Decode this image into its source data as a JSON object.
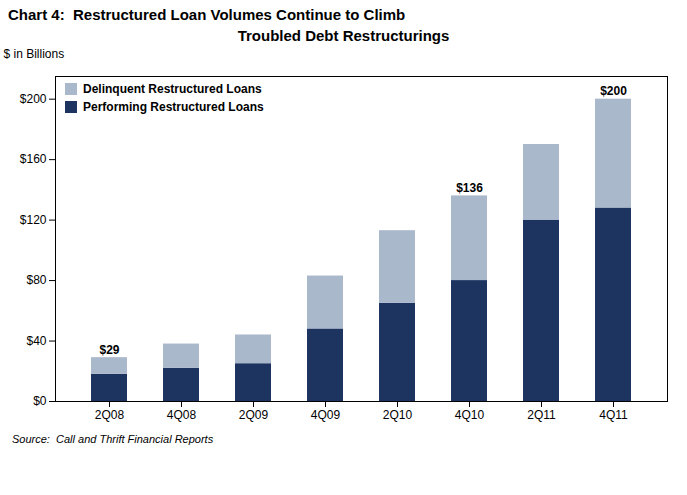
{
  "chart_data": {
    "type": "bar",
    "stacked": true,
    "title": "Chart 4:  Restructured Loan Volumes Continue to Climb",
    "subtitle": "Troubled Debt Restructurings",
    "ylabel": "$ in Billions",
    "caption": "Source:  Call and Thrift Financial Reports",
    "categories": [
      "2Q08",
      "4Q08",
      "2Q09",
      "4Q09",
      "2Q10",
      "4Q10",
      "2Q11",
      "4Q11"
    ],
    "series": [
      {
        "name": "Performing Restructured Loans",
        "color": "#1d3461",
        "values": [
          18,
          22,
          25,
          48,
          65,
          80,
          120,
          128
        ]
      },
      {
        "name": "Delinquent Restructured Loans",
        "color": "#aab8cc",
        "values": [
          11,
          16,
          19,
          35,
          48,
          56,
          50,
          72
        ]
      }
    ],
    "ylim": [
      0,
      215
    ],
    "yticks": [
      {
        "value": 0,
        "label": "$0"
      },
      {
        "value": 40,
        "label": "$40"
      },
      {
        "value": 80,
        "label": "$80"
      },
      {
        "value": 120,
        "label": "$120"
      },
      {
        "value": 160,
        "label": "$160"
      },
      {
        "value": 200,
        "label": "$200"
      }
    ],
    "annotations": [
      {
        "x": "2Q08",
        "y": 29,
        "text": "$29"
      },
      {
        "x": "4Q10",
        "y": 136,
        "text": "$136"
      },
      {
        "x": "4Q11",
        "y": 200,
        "text": "$200"
      }
    ],
    "legend": "upper left",
    "grid": false
  }
}
